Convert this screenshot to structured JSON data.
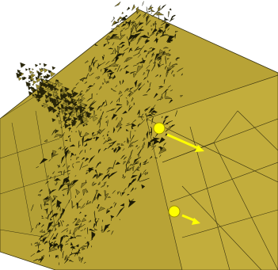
{
  "scene": {
    "background_color": "#ffffff",
    "surface_color": "#b8a336",
    "surface_shadow_color": "#6e611c",
    "mesh_line_color": "#1a1a05",
    "marker_color": "#ffff00",
    "arrow_color": "#ffff00",
    "markers": [
      {
        "label": ""
      },
      {
        "label": ""
      }
    ]
  }
}
